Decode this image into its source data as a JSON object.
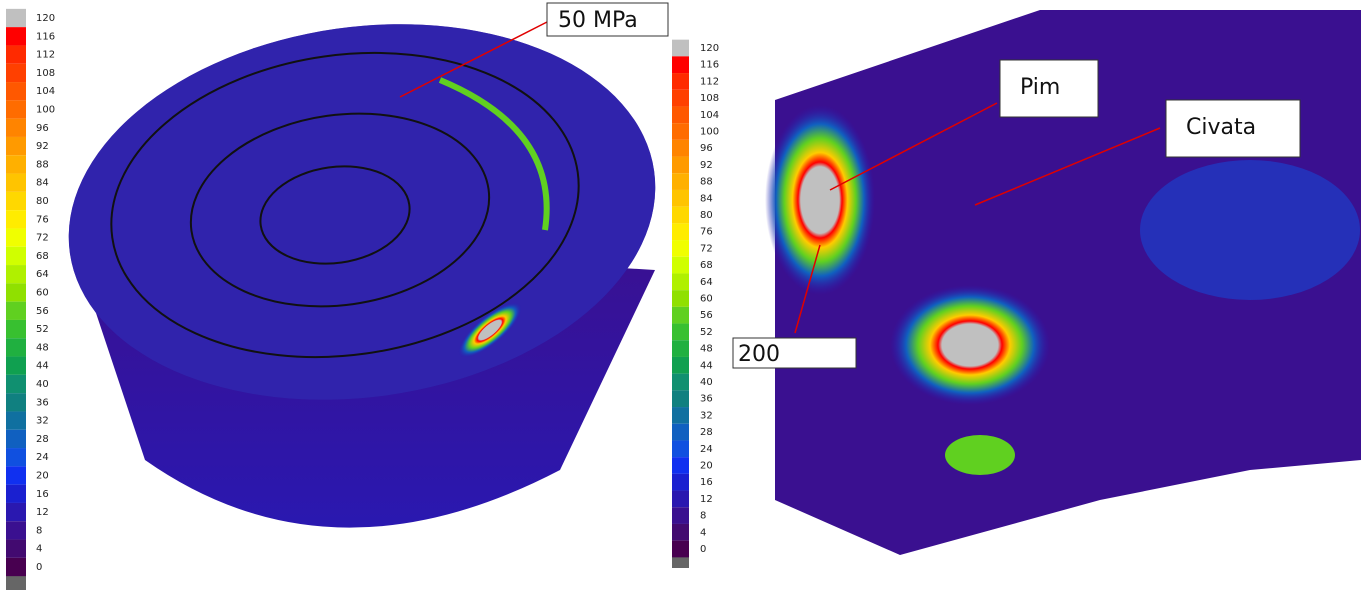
{
  "left_legend": {
    "labels": [
      120,
      116,
      112,
      108,
      104,
      100,
      96,
      92,
      88,
      84,
      80,
      76,
      72,
      68,
      64,
      60,
      56,
      52,
      48,
      44,
      40,
      36,
      32,
      28,
      24,
      20,
      16,
      12,
      8,
      4,
      0
    ]
  },
  "right_legend": {
    "labels": [
      120,
      116,
      112,
      108,
      104,
      100,
      96,
      92,
      88,
      84,
      80,
      76,
      72,
      68,
      64,
      60,
      56,
      52,
      48,
      44,
      40,
      36,
      32,
      28,
      24,
      20,
      16,
      12,
      8,
      4,
      0
    ]
  },
  "legend_colors": [
    "#c0c0c0",
    "#ff0000",
    "#ff2a00",
    "#ff4000",
    "#ff5800",
    "#ff6c00",
    "#ff8400",
    "#ff9a00",
    "#ffb000",
    "#ffc400",
    "#ffd800",
    "#ffec00",
    "#f0ff00",
    "#d0ff00",
    "#b0f000",
    "#90e000",
    "#60d020",
    "#38c030",
    "#20b040",
    "#10a050",
    "#109070",
    "#108080",
    "#1070a0",
    "#1060c0",
    "#1050e0",
    "#1030f0",
    "#1a20d0",
    "#2a18b0",
    "#3a1090",
    "#420a70",
    "#480050"
  ],
  "annotations": {
    "left_stress": "50 MPa",
    "pin": "Pim",
    "bolt": "Civata",
    "peak": "200"
  }
}
